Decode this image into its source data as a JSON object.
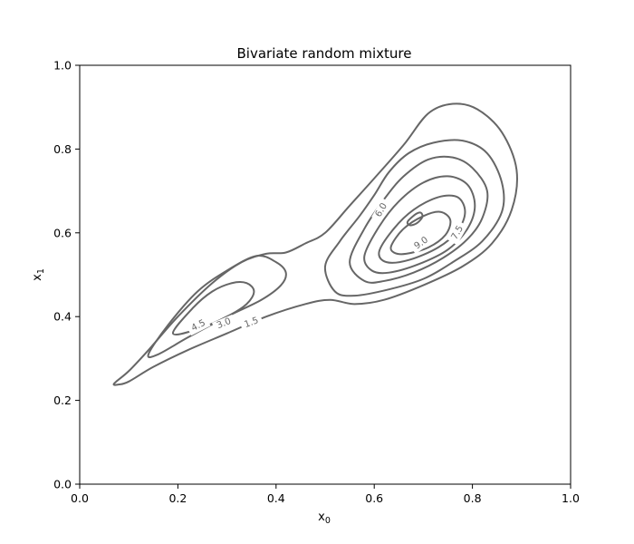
{
  "chart_data": {
    "type": "contour",
    "title": "Bivariate random mixture",
    "xlabel": "x",
    "xlabel_sub": "0",
    "ylabel": "x",
    "ylabel_sub": "1",
    "xlim": [
      0.0,
      1.0
    ],
    "ylim": [
      0.0,
      1.0
    ],
    "xticks": [
      "0.0",
      "0.2",
      "0.4",
      "0.6",
      "0.8",
      "1.0"
    ],
    "yticks": [
      "0.0",
      "0.2",
      "0.4",
      "0.6",
      "0.8",
      "1.0"
    ],
    "grid": false,
    "contour_color": "#666666",
    "levels": [
      1.5,
      3.0,
      4.5,
      6.0,
      7.5,
      9.0
    ],
    "contours": [
      {
        "level": 1.5,
        "label": "1.5",
        "label_at": [
          0.35,
          0.385
        ],
        "label_angle": -20,
        "paths": [
          [
            [
              0.07,
              0.24
            ],
            [
              0.1,
              0.27
            ],
            [
              0.14,
              0.32
            ],
            [
              0.2,
              0.4
            ],
            [
              0.27,
              0.48
            ],
            [
              0.33,
              0.53
            ],
            [
              0.38,
              0.55
            ],
            [
              0.42,
              0.553
            ],
            [
              0.46,
              0.575
            ],
            [
              0.5,
              0.6
            ],
            [
              0.55,
              0.665
            ],
            [
              0.6,
              0.73
            ],
            [
              0.66,
              0.81
            ],
            [
              0.71,
              0.885
            ],
            [
              0.76,
              0.908
            ],
            [
              0.81,
              0.895
            ],
            [
              0.86,
              0.84
            ],
            [
              0.89,
              0.75
            ],
            [
              0.88,
              0.655
            ],
            [
              0.84,
              0.575
            ],
            [
              0.78,
              0.52
            ],
            [
              0.7,
              0.475
            ],
            [
              0.62,
              0.44
            ],
            [
              0.56,
              0.43
            ],
            [
              0.51,
              0.44
            ],
            [
              0.46,
              0.43
            ],
            [
              0.38,
              0.4
            ],
            [
              0.3,
              0.36
            ],
            [
              0.22,
              0.32
            ],
            [
              0.15,
              0.28
            ],
            [
              0.1,
              0.245
            ],
            [
              0.08,
              0.238
            ],
            [
              0.07,
              0.24
            ]
          ]
        ]
      },
      {
        "level": 3.0,
        "label": "3.0",
        "label_at": [
          0.294,
          0.383
        ],
        "label_angle": -22,
        "paths": [
          [
            [
              0.14,
              0.31
            ],
            [
              0.18,
              0.38
            ],
            [
              0.24,
              0.46
            ],
            [
              0.3,
              0.51
            ],
            [
              0.36,
              0.545
            ],
            [
              0.4,
              0.53
            ],
            [
              0.42,
              0.505
            ],
            [
              0.41,
              0.475
            ],
            [
              0.37,
              0.44
            ],
            [
              0.3,
              0.4
            ],
            [
              0.22,
              0.35
            ],
            [
              0.16,
              0.31
            ],
            [
              0.14,
              0.31
            ]
          ],
          [
            [
              0.5,
              0.52
            ],
            [
              0.53,
              0.58
            ],
            [
              0.57,
              0.64
            ],
            [
              0.6,
              0.69
            ],
            [
              0.63,
              0.745
            ],
            [
              0.67,
              0.79
            ],
            [
              0.72,
              0.815
            ],
            [
              0.78,
              0.82
            ],
            [
              0.83,
              0.79
            ],
            [
              0.86,
              0.72
            ],
            [
              0.86,
              0.65
            ],
            [
              0.82,
              0.58
            ],
            [
              0.76,
              0.53
            ],
            [
              0.7,
              0.49
            ],
            [
              0.63,
              0.465
            ],
            [
              0.56,
              0.45
            ],
            [
              0.52,
              0.46
            ],
            [
              0.5,
              0.52
            ]
          ]
        ]
      },
      {
        "level": 4.5,
        "label": "4.5",
        "label_at": [
          0.242,
          0.378
        ],
        "label_angle": -27,
        "paths": [
          [
            [
              0.19,
              0.36
            ],
            [
              0.23,
              0.42
            ],
            [
              0.27,
              0.46
            ],
            [
              0.31,
              0.48
            ],
            [
              0.34,
              0.48
            ],
            [
              0.355,
              0.46
            ],
            [
              0.34,
              0.43
            ],
            [
              0.3,
              0.4
            ],
            [
              0.24,
              0.37
            ],
            [
              0.19,
              0.36
            ]
          ],
          [
            [
              0.55,
              0.53
            ],
            [
              0.58,
              0.61
            ],
            [
              0.62,
              0.68
            ],
            [
              0.66,
              0.735
            ],
            [
              0.71,
              0.775
            ],
            [
              0.76,
              0.78
            ],
            [
              0.8,
              0.755
            ],
            [
              0.83,
              0.7
            ],
            [
              0.82,
              0.635
            ],
            [
              0.79,
              0.585
            ],
            [
              0.74,
              0.54
            ],
            [
              0.68,
              0.505
            ],
            [
              0.62,
              0.485
            ],
            [
              0.58,
              0.485
            ],
            [
              0.55,
              0.53
            ]
          ]
        ]
      },
      {
        "level": 6.0,
        "label": "6.0",
        "label_at": [
          0.615,
          0.654
        ],
        "label_angle": -60,
        "paths": [
          [
            [
              0.58,
              0.545
            ],
            [
              0.61,
              0.615
            ],
            [
              0.65,
              0.675
            ],
            [
              0.7,
              0.72
            ],
            [
              0.75,
              0.735
            ],
            [
              0.79,
              0.715
            ],
            [
              0.805,
              0.665
            ],
            [
              0.79,
              0.61
            ],
            [
              0.75,
              0.56
            ],
            [
              0.69,
              0.525
            ],
            [
              0.63,
              0.505
            ],
            [
              0.595,
              0.51
            ],
            [
              0.58,
              0.545
            ]
          ]
        ]
      },
      {
        "level": 7.5,
        "label": "7.5",
        "label_at": [
          0.77,
          0.6
        ],
        "label_angle": -60,
        "paths": [
          [
            [
              0.61,
              0.555
            ],
            [
              0.64,
              0.61
            ],
            [
              0.68,
              0.655
            ],
            [
              0.73,
              0.685
            ],
            [
              0.77,
              0.685
            ],
            [
              0.785,
              0.65
            ],
            [
              0.77,
              0.605
            ],
            [
              0.73,
              0.565
            ],
            [
              0.67,
              0.535
            ],
            [
              0.625,
              0.53
            ],
            [
              0.61,
              0.555
            ]
          ]
        ]
      },
      {
        "level": 9.0,
        "label": "9.0",
        "label_at": [
          0.696,
          0.575
        ],
        "label_angle": -35,
        "paths": [
          [
            [
              0.635,
              0.57
            ],
            [
              0.66,
              0.61
            ],
            [
              0.7,
              0.64
            ],
            [
              0.735,
              0.65
            ],
            [
              0.755,
              0.63
            ],
            [
              0.745,
              0.595
            ],
            [
              0.71,
              0.565
            ],
            [
              0.665,
              0.55
            ],
            [
              0.64,
              0.553
            ],
            [
              0.635,
              0.57
            ]
          ],
          [
            [
              0.67,
              0.63
            ],
            [
              0.685,
              0.645
            ],
            [
              0.695,
              0.648
            ],
            [
              0.698,
              0.638
            ],
            [
              0.688,
              0.624
            ],
            [
              0.675,
              0.618
            ],
            [
              0.668,
              0.622
            ],
            [
              0.67,
              0.63
            ]
          ]
        ]
      }
    ]
  }
}
